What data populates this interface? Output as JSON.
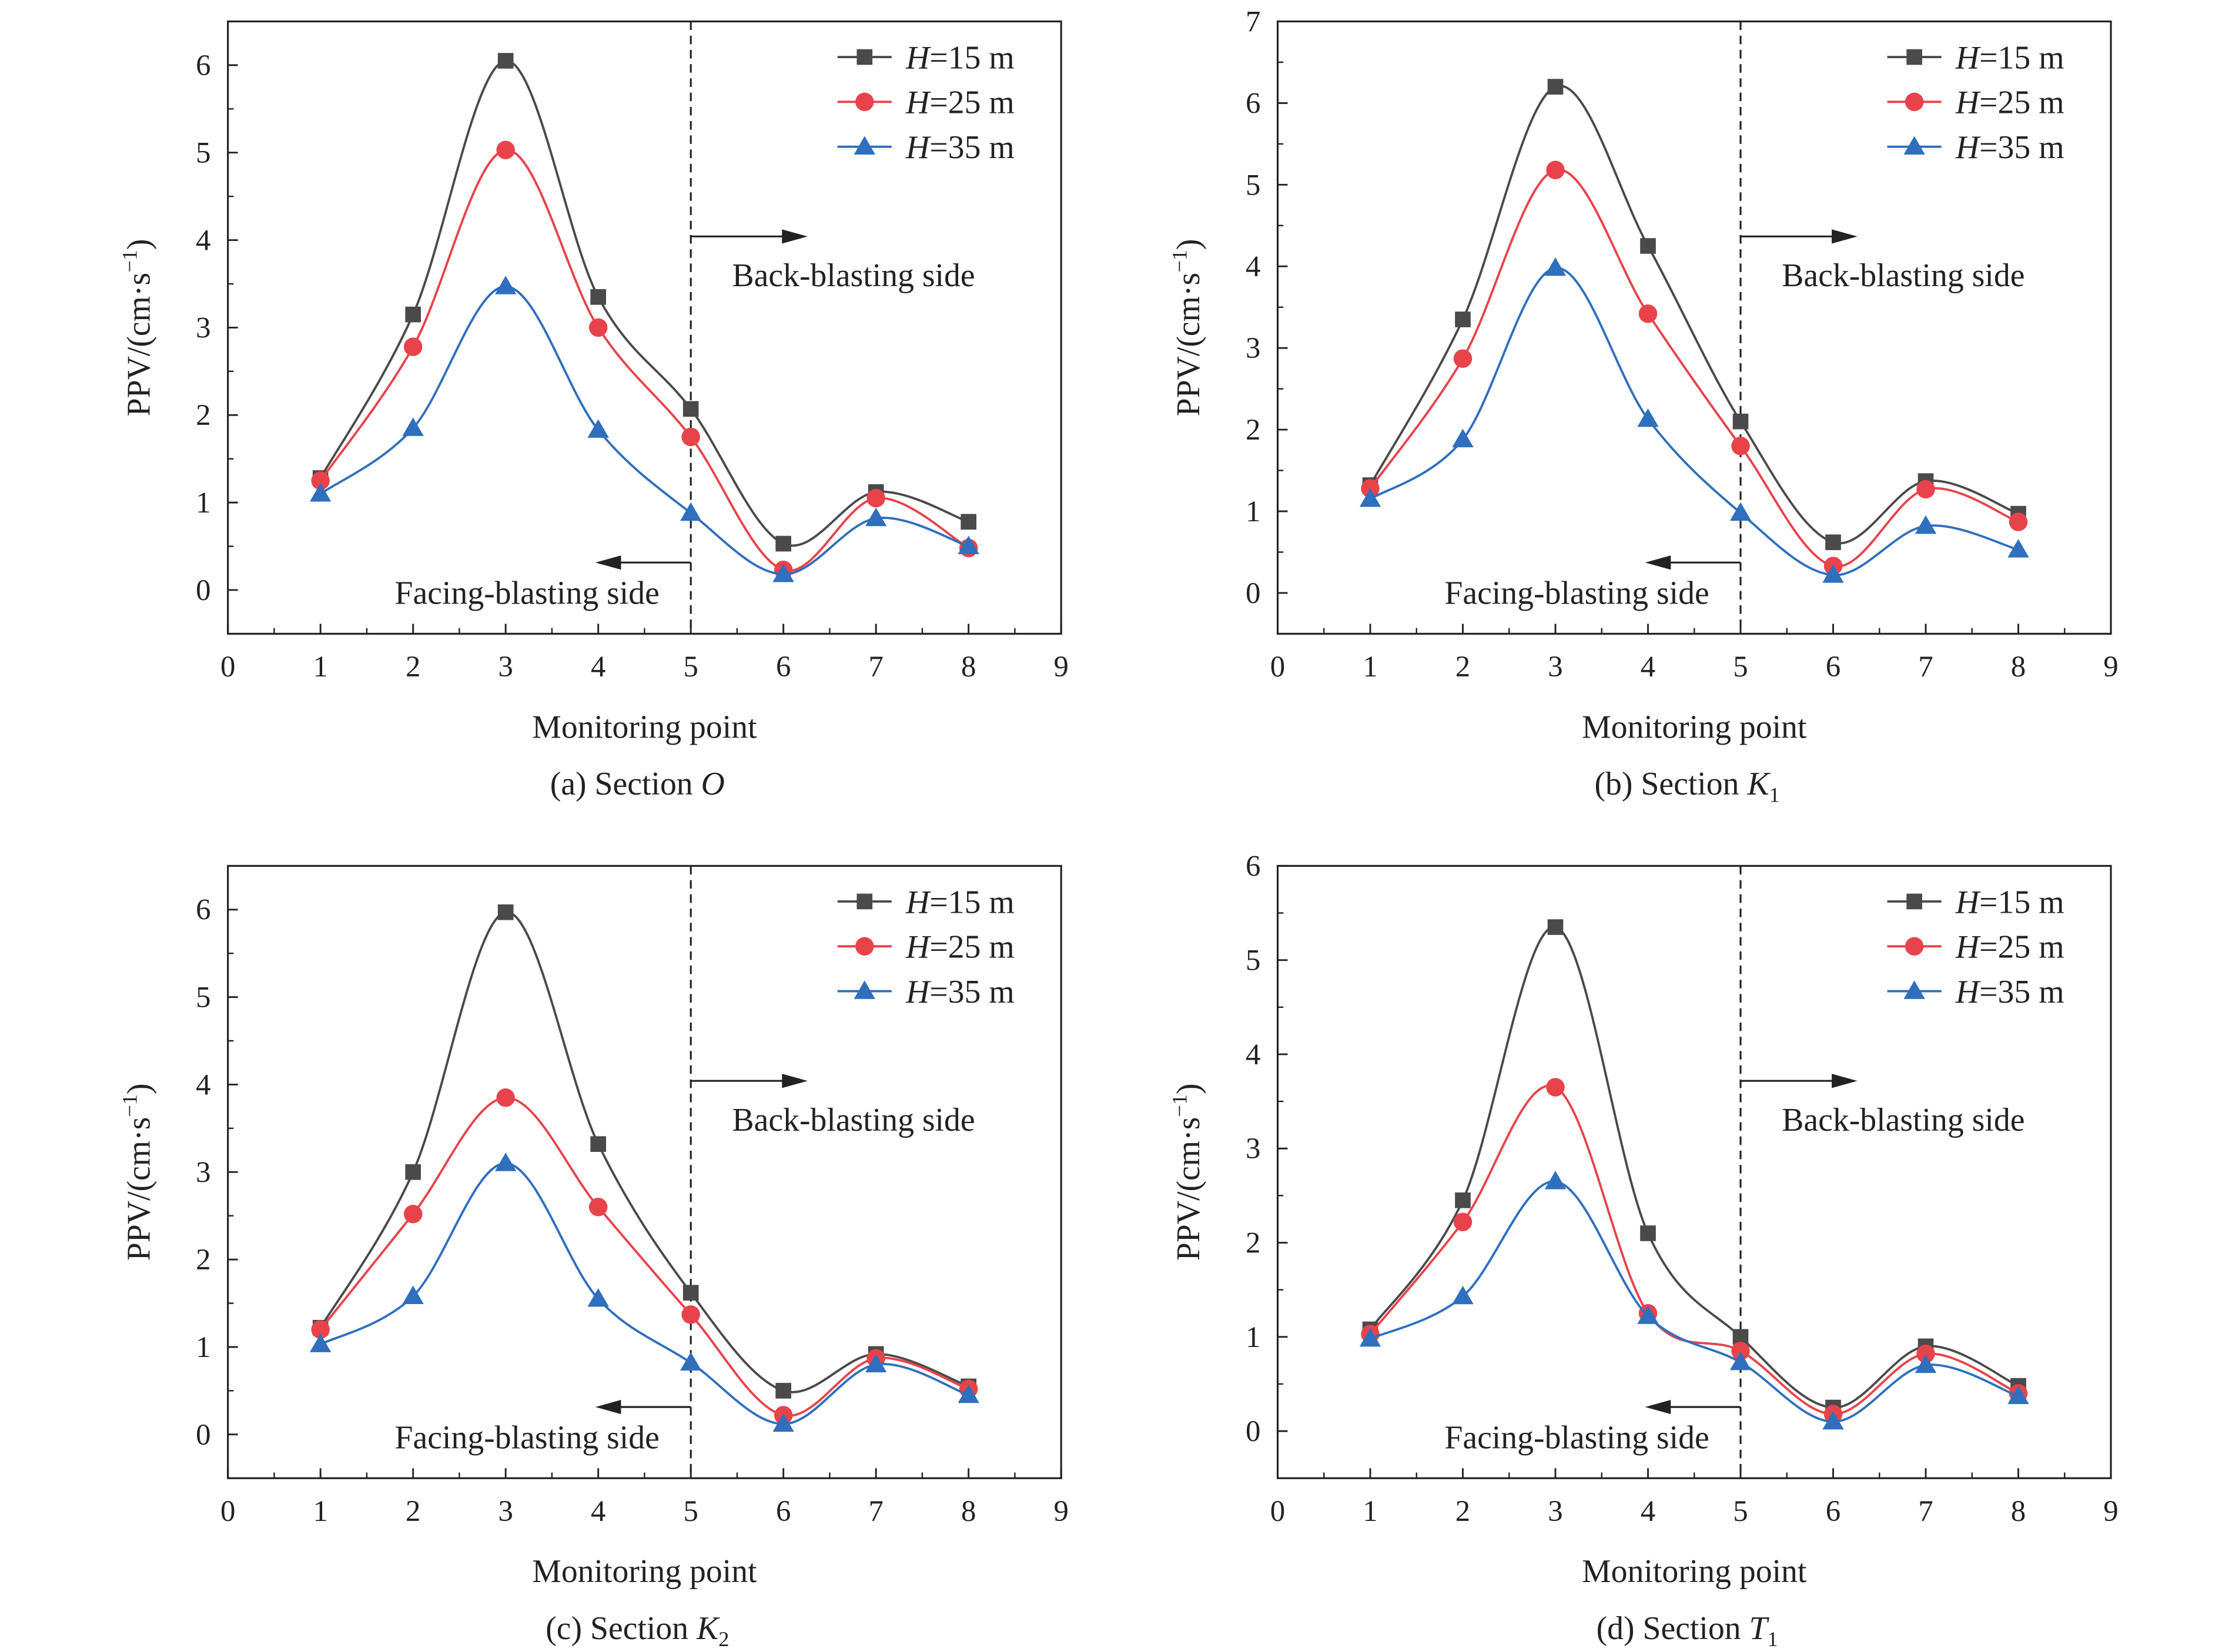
{
  "colors": {
    "H15": "#4a4a4a",
    "H25": "#e8434b",
    "H35": "#2f6fbd",
    "axis": "#222222"
  },
  "chart_data": [
    {
      "type": "line",
      "caption": {
        "prefix": "(a) Section ",
        "var": "O",
        "sub": ""
      },
      "xlabel": "Monitoring point",
      "ylabel": "PPV/(cm·s−1)",
      "xlim": [
        0,
        9
      ],
      "ylim": [
        -0.5,
        6.5
      ],
      "xticks": [
        0,
        1,
        2,
        3,
        4,
        5,
        6,
        7,
        8,
        9
      ],
      "yticks": [
        0,
        1,
        2,
        3,
        4,
        5,
        6
      ],
      "divider_x": 5,
      "annotations": {
        "right": "Back-blasting side",
        "left": "Facing-blasting side"
      },
      "legend_position": "top-right",
      "x": [
        1,
        2,
        3,
        4,
        5,
        6,
        7,
        8
      ],
      "series": [
        {
          "name": "H=15 m",
          "marker": "square",
          "color_key": "H15",
          "values": [
            1.28,
            3.15,
            6.05,
            3.35,
            2.07,
            0.53,
            1.12,
            0.78
          ]
        },
        {
          "name": "H=25 m",
          "marker": "circle",
          "color_key": "H25",
          "values": [
            1.25,
            2.78,
            5.03,
            3.0,
            1.75,
            0.23,
            1.05,
            0.48
          ]
        },
        {
          "name": "H=35 m",
          "marker": "triangle",
          "color_key": "H35",
          "values": [
            1.1,
            1.85,
            3.47,
            1.83,
            0.88,
            0.18,
            0.82,
            0.5
          ]
        }
      ]
    },
    {
      "type": "line",
      "caption": {
        "prefix": "(b) Section ",
        "var": "K",
        "sub": "1"
      },
      "xlabel": "Monitoring point",
      "ylabel": "PPV/(cm·s−1)",
      "xlim": [
        0,
        9
      ],
      "ylim": [
        -0.5,
        7
      ],
      "xticks": [
        0,
        1,
        2,
        3,
        4,
        5,
        6,
        7,
        8,
        9
      ],
      "yticks": [
        0,
        1,
        2,
        3,
        4,
        5,
        6,
        7
      ],
      "divider_x": 5,
      "annotations": {
        "right": "Back-blasting side",
        "left": "Facing-blasting side"
      },
      "legend_position": "top-right",
      "x": [
        1,
        2,
        3,
        4,
        5,
        6,
        7,
        8
      ],
      "series": [
        {
          "name": "H=15 m",
          "marker": "square",
          "color_key": "H15",
          "values": [
            1.32,
            3.35,
            6.2,
            4.25,
            2.1,
            0.62,
            1.37,
            0.97
          ]
        },
        {
          "name": "H=25 m",
          "marker": "circle",
          "color_key": "H25",
          "values": [
            1.28,
            2.87,
            5.18,
            3.42,
            1.8,
            0.33,
            1.27,
            0.87
          ]
        },
        {
          "name": "H=35 m",
          "marker": "triangle",
          "color_key": "H35",
          "values": [
            1.15,
            1.88,
            3.98,
            2.13,
            0.98,
            0.22,
            0.82,
            0.53
          ]
        }
      ]
    },
    {
      "type": "line",
      "caption": {
        "prefix": "(c) Section ",
        "var": "K",
        "sub": "2"
      },
      "xlabel": "Monitoring point",
      "ylabel": "PPV/(cm·s−1)",
      "xlim": [
        0,
        9
      ],
      "ylim": [
        -0.5,
        6.5
      ],
      "xticks": [
        0,
        1,
        2,
        3,
        4,
        5,
        6,
        7,
        8,
        9
      ],
      "yticks": [
        0,
        1,
        2,
        3,
        4,
        5,
        6
      ],
      "divider_x": 5,
      "annotations": {
        "right": "Back-blasting side",
        "left": "Facing-blasting side"
      },
      "legend_position": "top-right",
      "x": [
        1,
        2,
        3,
        4,
        5,
        6,
        7,
        8
      ],
      "series": [
        {
          "name": "H=15 m",
          "marker": "square",
          "color_key": "H15",
          "values": [
            1.22,
            3.0,
            5.97,
            3.32,
            1.62,
            0.5,
            0.92,
            0.55
          ]
        },
        {
          "name": "H=25 m",
          "marker": "circle",
          "color_key": "H25",
          "values": [
            1.2,
            2.52,
            3.85,
            2.6,
            1.37,
            0.22,
            0.87,
            0.52
          ]
        },
        {
          "name": "H=35 m",
          "marker": "triangle",
          "color_key": "H35",
          "values": [
            1.03,
            1.58,
            3.1,
            1.55,
            0.82,
            0.12,
            0.8,
            0.45
          ]
        }
      ]
    },
    {
      "type": "line",
      "caption": {
        "prefix": "(d) Section ",
        "var": "T",
        "sub": "1"
      },
      "xlabel": "Monitoring point",
      "ylabel": "PPV/(cm·s−1)",
      "xlim": [
        0,
        9
      ],
      "ylim": [
        -0.5,
        6
      ],
      "xticks": [
        0,
        1,
        2,
        3,
        4,
        5,
        6,
        7,
        8,
        9
      ],
      "yticks": [
        0,
        1,
        2,
        3,
        4,
        5,
        6
      ],
      "divider_x": 5,
      "annotations": {
        "right": "Back-blasting side",
        "left": "Facing-blasting side"
      },
      "legend_position": "top-right",
      "x": [
        1,
        2,
        3,
        4,
        5,
        6,
        7,
        8
      ],
      "series": [
        {
          "name": "H=15 m",
          "marker": "square",
          "color_key": "H15",
          "values": [
            1.08,
            2.45,
            5.35,
            2.1,
            1.0,
            0.25,
            0.9,
            0.48
          ]
        },
        {
          "name": "H=25 m",
          "marker": "circle",
          "color_key": "H25",
          "values": [
            1.03,
            2.22,
            3.65,
            1.25,
            0.85,
            0.18,
            0.82,
            0.4
          ]
        },
        {
          "name": "H=35 m",
          "marker": "triangle",
          "color_key": "H35",
          "values": [
            0.98,
            1.43,
            2.65,
            1.22,
            0.73,
            0.1,
            0.7,
            0.37
          ]
        }
      ]
    }
  ]
}
